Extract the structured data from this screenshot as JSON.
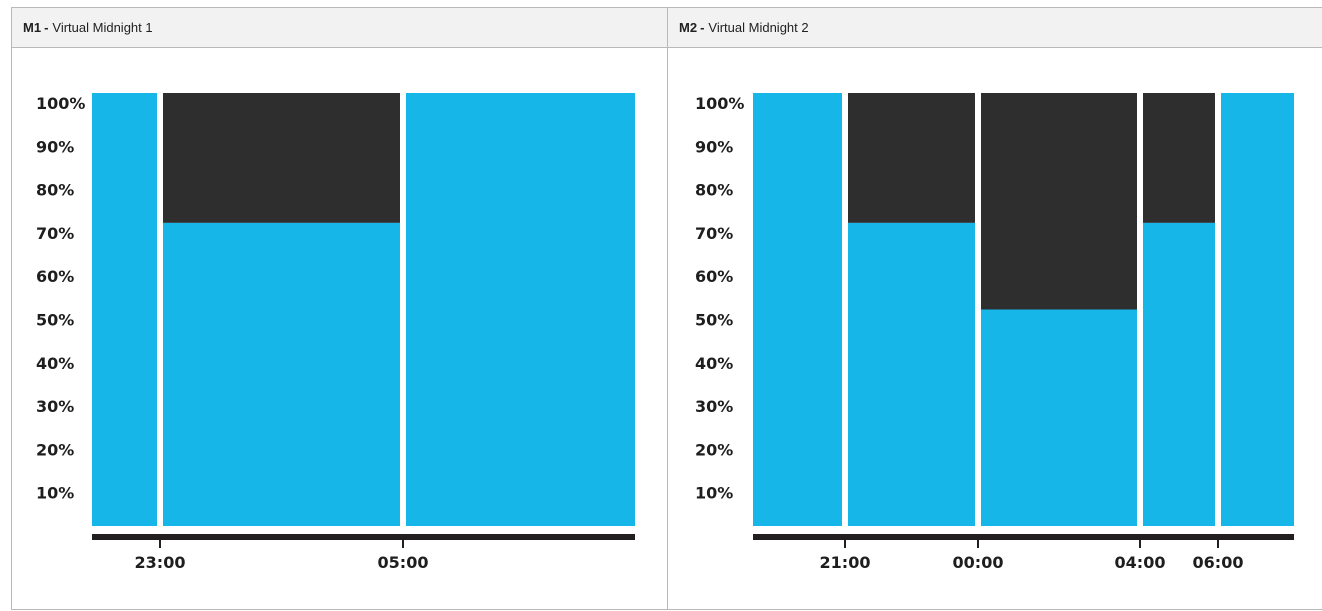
{
  "colors": {
    "on": "#16b6e8",
    "off": "#2e2e2e",
    "axis": "#231f20",
    "border": "#b9b9b9",
    "header_bg": "#f2f2f2"
  },
  "panels": [
    {
      "code": "M1",
      "separator": "-",
      "title": "Virtual Midnight 1"
    },
    {
      "code": "M2",
      "separator": "-",
      "title": "Virtual Midnight 2"
    }
  ],
  "chart_data": [
    {
      "type": "bar",
      "title": "M1 - Virtual Midnight 1",
      "y_tick_labels": [
        "100%",
        "90%",
        "80%",
        "70%",
        "60%",
        "50%",
        "40%",
        "30%",
        "20%",
        "10%"
      ],
      "x_tick_labels": [
        "23:00",
        "05:00"
      ],
      "ylim": [
        0,
        100
      ],
      "segments": [
        {
          "start_tick": null,
          "end_tick": "23:00",
          "level_percent": 100
        },
        {
          "start_tick": "23:00",
          "end_tick": "05:00",
          "level_percent": 70
        },
        {
          "start_tick": "05:00",
          "end_tick": null,
          "level_percent": 100
        }
      ],
      "legend": "none",
      "grid": false
    },
    {
      "type": "bar",
      "title": "M2 - Virtual Midnight 2",
      "y_tick_labels": [
        "100%",
        "90%",
        "80%",
        "70%",
        "60%",
        "50%",
        "40%",
        "30%",
        "20%",
        "10%"
      ],
      "x_tick_labels": [
        "21:00",
        "00:00",
        "04:00",
        "06:00"
      ],
      "ylim": [
        0,
        100
      ],
      "segments": [
        {
          "start_tick": null,
          "end_tick": "21:00",
          "level_percent": 100
        },
        {
          "start_tick": "21:00",
          "end_tick": "00:00",
          "level_percent": 70
        },
        {
          "start_tick": "00:00",
          "end_tick": "04:00",
          "level_percent": 50
        },
        {
          "start_tick": "04:00",
          "end_tick": "06:00",
          "level_percent": 70
        },
        {
          "start_tick": "06:00",
          "end_tick": null,
          "level_percent": 100
        }
      ],
      "legend": "none",
      "grid": false
    }
  ]
}
